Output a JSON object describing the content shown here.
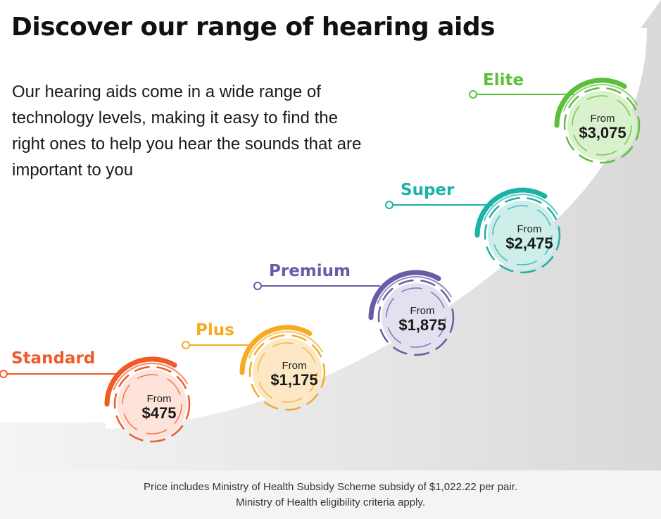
{
  "header": {
    "title": "Discover our range of hearing aids",
    "intro": "Our hearing aids come in a wide range of technology levels, making it easy to find the right ones to help you hear the sounds that are important to you"
  },
  "tiers": [
    {
      "name": "Standard",
      "from_label": "From",
      "price": "$475",
      "color": "#f05a28",
      "fill": "#fde3da"
    },
    {
      "name": "Plus",
      "from_label": "From",
      "price": "$1,175",
      "color": "#f5ab22",
      "fill": "#fde8c5"
    },
    {
      "name": "Premium",
      "from_label": "From",
      "price": "$1,875",
      "color": "#6a5ba7",
      "fill": "#e3e0ef"
    },
    {
      "name": "Super",
      "from_label": "From",
      "price": "$2,475",
      "color": "#1bb3a6",
      "fill": "#cdeee9"
    },
    {
      "name": "Elite",
      "from_label": "From",
      "price": "$3,075",
      "color": "#5cbf3a",
      "fill": "#d9f1cd"
    }
  ],
  "footer": {
    "line1": "Price includes Ministry of Health Subsidy Scheme subsidy of $1,022.22 per pair.",
    "line2": "Ministry of Health eligibility criteria apply."
  }
}
